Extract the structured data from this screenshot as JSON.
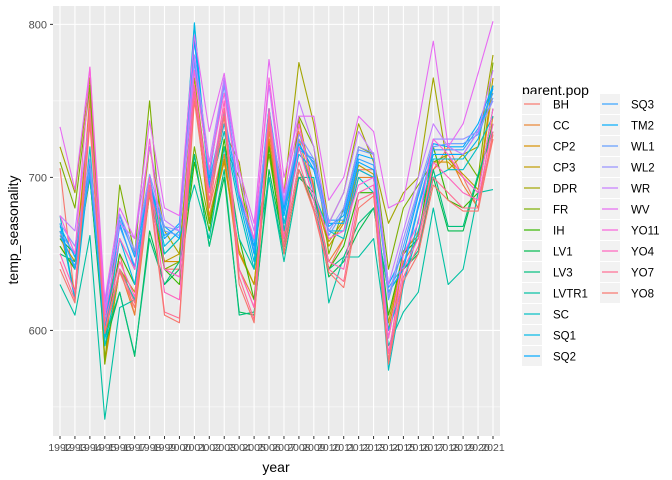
{
  "chart_data": {
    "type": "line",
    "xlabel": "year",
    "ylabel": "temp_seasonality",
    "x": [
      1992,
      1993,
      1994,
      1995,
      1996,
      1997,
      1998,
      1999,
      2000,
      2001,
      2002,
      2003,
      2004,
      2005,
      2006,
      2007,
      2008,
      2009,
      2010,
      2011,
      2012,
      2013,
      2014,
      2015,
      2016,
      2017,
      2018,
      2019,
      2020,
      2021
    ],
    "x_tick_labels": [
      "1992",
      "1993",
      "1994",
      "1995",
      "1996",
      "1997",
      "1998",
      "1999",
      "2000",
      "2001",
      "2002",
      "2003",
      "2004",
      "2005",
      "2006",
      "2007",
      "2008",
      "2009",
      "2010",
      "2011",
      "2012",
      "2013",
      "2014",
      "2015",
      "2016",
      "2017",
      "2018",
      "2019",
      "2020",
      "2021"
    ],
    "y_ticks": [
      600,
      700,
      800
    ],
    "y_tick_labels": [
      "600",
      "700",
      "800"
    ],
    "ylim": [
      531,
      812
    ],
    "grid": true,
    "legend_placement": "right",
    "legend_title": "parent.pop",
    "series": [
      {
        "name": "BH",
        "color": "#F8766D",
        "values": [
          706,
          620,
          755,
          600,
          650,
          610,
          700,
          640,
          640,
          760,
          680,
          720,
          640,
          615,
          735,
          650,
          730,
          695,
          640,
          660,
          705,
          705,
          580,
          650,
          665,
          705,
          720,
          700,
          680,
          725
        ]
      },
      {
        "name": "CC",
        "color": "#EA8331",
        "values": [
          665,
          625,
          750,
          580,
          640,
          610,
          690,
          640,
          635,
          755,
          675,
          715,
          640,
          620,
          730,
          665,
          725,
          690,
          645,
          660,
          700,
          700,
          595,
          645,
          660,
          705,
          715,
          695,
          680,
          740
        ]
      },
      {
        "name": "CP2",
        "color": "#D89000",
        "values": [
          655,
          640,
          745,
          582,
          640,
          620,
          690,
          645,
          645,
          760,
          670,
          710,
          650,
          630,
          725,
          660,
          735,
          690,
          655,
          670,
          705,
          700,
          600,
          650,
          660,
          710,
          710,
          700,
          690,
          760
        ]
      },
      {
        "name": "CP3",
        "color": "#C09B00",
        "values": [
          660,
          645,
          745,
          578,
          640,
          625,
          688,
          645,
          650,
          760,
          672,
          712,
          652,
          630,
          722,
          660,
          738,
          692,
          658,
          672,
          708,
          702,
          605,
          652,
          662,
          712,
          712,
          702,
          692,
          765
        ]
      },
      {
        "name": "DPR",
        "color": "#A3A500",
        "values": [
          720,
          690,
          765,
          600,
          660,
          640,
          720,
          665,
          650,
          765,
          690,
          730,
          710,
          650,
          735,
          690,
          775,
          735,
          670,
          690,
          735,
          710,
          670,
          690,
          700,
          765,
          705,
          715,
          720,
          780
        ]
      },
      {
        "name": "FR",
        "color": "#7CAE00",
        "values": [
          710,
          680,
          760,
          578,
          695,
          650,
          750,
          640,
          645,
          720,
          670,
          720,
          700,
          650,
          715,
          655,
          740,
          720,
          650,
          680,
          720,
          715,
          640,
          680,
          695,
          710,
          715,
          715,
          700,
          775
        ]
      },
      {
        "name": "IH",
        "color": "#39B600",
        "values": [
          655,
          640,
          700,
          595,
          650,
          630,
          690,
          640,
          630,
          710,
          665,
          725,
          660,
          620,
          720,
          650,
          705,
          680,
          640,
          655,
          690,
          690,
          610,
          650,
          660,
          720,
          685,
          680,
          690,
          745
        ]
      },
      {
        "name": "LV1",
        "color": "#00BB4E",
        "values": [
          660,
          650,
          700,
          590,
          625,
          583,
          665,
          630,
          640,
          715,
          655,
          700,
          612,
          610,
          705,
          655,
          700,
          690,
          635,
          645,
          665,
          680,
          625,
          640,
          650,
          700,
          665,
          665,
          700,
          735
        ]
      },
      {
        "name": "LV3",
        "color": "#00BF7D",
        "values": [
          650,
          645,
          700,
          595,
          625,
          584,
          660,
          630,
          645,
          715,
          655,
          705,
          610,
          612,
          700,
          650,
          705,
          685,
          640,
          648,
          670,
          680,
          625,
          640,
          652,
          705,
          668,
          668,
          702,
          730
        ]
      },
      {
        "name": "LVTR1",
        "color": "#00C1A3",
        "values": [
          630,
          610,
          662,
          542,
          615,
          620,
          700,
          650,
          660,
          695,
          660,
          720,
          660,
          640,
          700,
          645,
          700,
          700,
          618,
          648,
          648,
          660,
          590,
          612,
          625,
          680,
          630,
          640,
          690,
          692
        ]
      },
      {
        "name": "SC",
        "color": "#00BFC4",
        "values": [
          675,
          620,
          720,
          590,
          640,
          620,
          690,
          650,
          660,
          800,
          690,
          730,
          680,
          640,
          745,
          665,
          720,
          690,
          665,
          660,
          700,
          690,
          574,
          630,
          665,
          700,
          705,
          705,
          720,
          740
        ]
      },
      {
        "name": "SQ1",
        "color": "#00B8E7",
        "values": [
          670,
          620,
          710,
          595,
          660,
          630,
          700,
          655,
          665,
          801,
          692,
          735,
          685,
          645,
          745,
          670,
          715,
          705,
          665,
          665,
          705,
          700,
          600,
          630,
          672,
          712,
          712,
          712,
          725,
          760
        ]
      },
      {
        "name": "SQ2",
        "color": "#00A9FF",
        "values": [
          665,
          640,
          705,
          600,
          670,
          640,
          695,
          660,
          670,
          790,
          695,
          740,
          690,
          650,
          740,
          675,
          720,
          710,
          670,
          670,
          710,
          705,
          625,
          640,
          680,
          715,
          715,
          715,
          730,
          758
        ]
      },
      {
        "name": "SQ3",
        "color": "#35A2FF",
        "values": [
          662,
          642,
          702,
          605,
          668,
          642,
          692,
          662,
          668,
          780,
          698,
          742,
          688,
          652,
          738,
          678,
          718,
          712,
          672,
          672,
          712,
          708,
          628,
          642,
          682,
          718,
          718,
          718,
          732,
          755
        ]
      },
      {
        "name": "TM2",
        "color": "#00ABFD",
        "values": [
          668,
          648,
          708,
          615,
          675,
          648,
          695,
          668,
          660,
          790,
          700,
          765,
          688,
          655,
          745,
          680,
          722,
          705,
          668,
          675,
          715,
          712,
          630,
          650,
          688,
          722,
          720,
          720,
          735,
          760
        ]
      },
      {
        "name": "WL1",
        "color": "#619CFF",
        "values": [
          664,
          650,
          706,
          618,
          672,
          650,
          698,
          665,
          662,
          775,
          702,
          760,
          685,
          658,
          740,
          682,
          725,
          708,
          662,
          678,
          718,
          715,
          620,
          655,
          690,
          720,
          722,
          722,
          728,
          752
        ]
      },
      {
        "name": "WL2",
        "color": "#9590FF",
        "values": [
          670,
          655,
          712,
          612,
          676,
          652,
          702,
          668,
          665,
          770,
          705,
          762,
          690,
          660,
          742,
          684,
          728,
          712,
          665,
          680,
          720,
          716,
          622,
          660,
          692,
          725,
          725,
          725,
          730,
          750
        ]
      },
      {
        "name": "WR",
        "color": "#C77CFF",
        "values": [
          675,
          665,
          740,
          615,
          670,
          660,
          720,
          672,
          665,
          780,
          710,
          765,
          700,
          665,
          760,
          685,
          750,
          720,
          670,
          690,
          730,
          715,
          630,
          665,
          700,
          735,
          720,
          715,
          730,
          770
        ]
      },
      {
        "name": "WV",
        "color": "#E76BF3",
        "values": [
          733,
          692,
          772,
          620,
          680,
          660,
          737,
          680,
          675,
          793,
          730,
          768,
          705,
          670,
          777,
          700,
          740,
          740,
          685,
          700,
          740,
          730,
          680,
          685,
          735,
          789,
          720,
          735,
          768,
          802
        ]
      },
      {
        "name": "YO11",
        "color": "#FA62DB",
        "values": [
          675,
          650,
          772,
          610,
          660,
          640,
          725,
          640,
          635,
          770,
          705,
          755,
          690,
          660,
          765,
          690,
          735,
          690,
          660,
          665,
          695,
          700,
          595,
          650,
          670,
          725,
          715,
          700,
          690,
          745
        ]
      },
      {
        "name": "YO4",
        "color": "#FF62BC",
        "values": [
          650,
          625,
          745,
          605,
          645,
          622,
          700,
          625,
          620,
          760,
          690,
          750,
          640,
          615,
          745,
          660,
          720,
          685,
          645,
          640,
          690,
          695,
          585,
          640,
          660,
          710,
          700,
          690,
          685,
          735
        ]
      },
      {
        "name": "YO7",
        "color": "#FF6C91",
        "values": [
          645,
          620,
          740,
          600,
          640,
          618,
          695,
          612,
          608,
          755,
          685,
          745,
          635,
          607,
          740,
          655,
          710,
          680,
          640,
          632,
          685,
          690,
          580,
          635,
          655,
          700,
          690,
          680,
          680,
          730
        ]
      },
      {
        "name": "YO8",
        "color": "#F8766D",
        "values": [
          640,
          618,
          735,
          598,
          638,
          615,
          690,
          610,
          605,
          750,
          680,
          740,
          630,
          605,
          735,
          650,
          705,
          678,
          638,
          628,
          680,
          688,
          578,
          632,
          650,
          695,
          685,
          678,
          678,
          728
        ]
      }
    ]
  }
}
